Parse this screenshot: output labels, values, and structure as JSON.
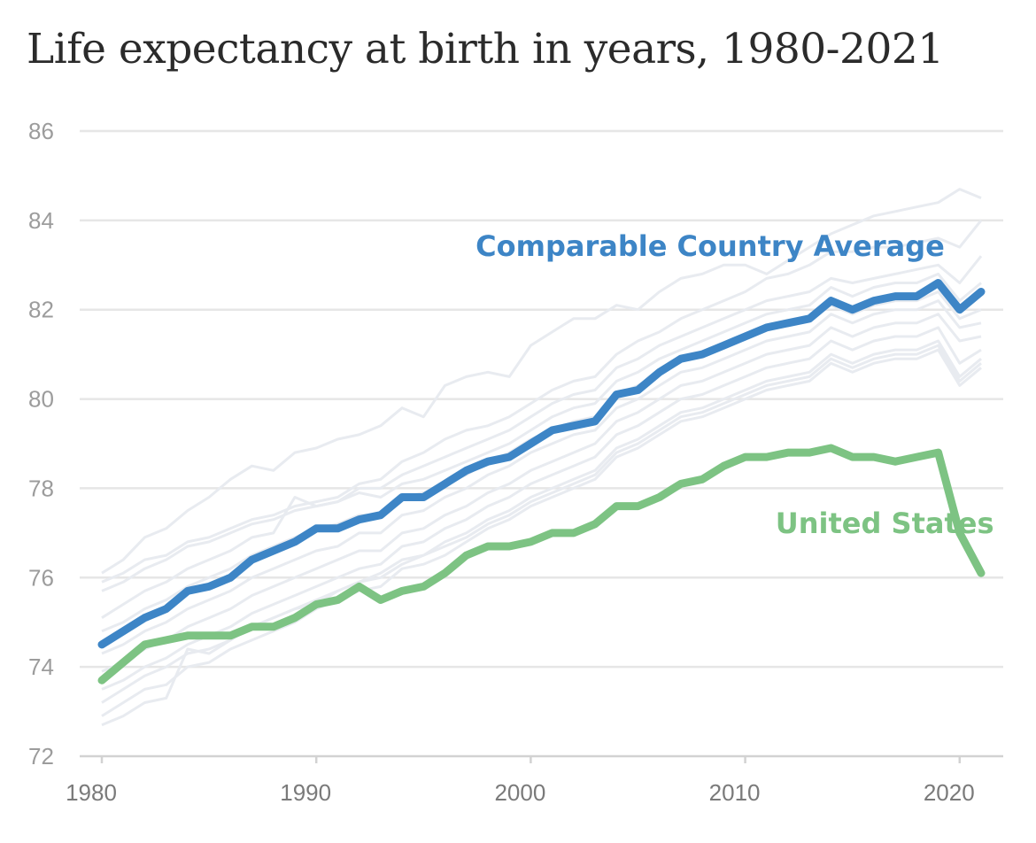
{
  "chart_data": {
    "type": "line",
    "title": "Life expectancy at birth in years, 1980-2021",
    "xlabel": "",
    "ylabel": "",
    "xlim": [
      1980,
      2021
    ],
    "ylim": [
      72,
      86
    ],
    "grid": true,
    "x_ticks": [
      {
        "value": 1980,
        "label": "1980"
      },
      {
        "value": 1990,
        "label": "1990"
      },
      {
        "value": 2000,
        "label": "2000"
      },
      {
        "value": 2010,
        "label": "2010"
      },
      {
        "value": 2020,
        "label": "2020"
      }
    ],
    "y_ticks": [
      {
        "value": 72,
        "label": "72"
      },
      {
        "value": 74,
        "label": "74"
      },
      {
        "value": 76,
        "label": "76"
      },
      {
        "value": 78,
        "label": "78"
      },
      {
        "value": 80,
        "label": "80"
      },
      {
        "value": 82,
        "label": "82"
      },
      {
        "value": 84,
        "label": "84"
      },
      {
        "value": 86,
        "label": "86"
      }
    ],
    "x": [
      1980,
      1981,
      1982,
      1983,
      1984,
      1985,
      1986,
      1987,
      1988,
      1989,
      1990,
      1991,
      1992,
      1993,
      1994,
      1995,
      1996,
      1997,
      1998,
      1999,
      2000,
      2001,
      2002,
      2003,
      2004,
      2005,
      2006,
      2007,
      2008,
      2009,
      2010,
      2011,
      2012,
      2013,
      2014,
      2015,
      2016,
      2017,
      2018,
      2019,
      2020,
      2021
    ],
    "series": [
      {
        "name": "Comparable Country Average",
        "label": "Comparable Country Average",
        "label_anchor": {
          "x": 2019.3,
          "y": 83.2
        },
        "color": "#3d85c6",
        "values": [
          74.5,
          74.8,
          75.1,
          75.3,
          75.7,
          75.8,
          76.0,
          76.4,
          76.6,
          76.8,
          77.1,
          77.1,
          77.3,
          77.4,
          77.8,
          77.8,
          78.1,
          78.4,
          78.6,
          78.7,
          79.0,
          79.3,
          79.4,
          79.5,
          80.1,
          80.2,
          80.6,
          80.9,
          81.0,
          81.2,
          81.4,
          81.6,
          81.7,
          81.8,
          82.2,
          82.0,
          82.2,
          82.3,
          82.3,
          82.6,
          82.0,
          82.4
        ]
      },
      {
        "name": "United States",
        "label": "United States",
        "label_anchor": {
          "x": 2021.6,
          "y": 77.0
        },
        "color": "#7dc383",
        "values": [
          73.7,
          74.1,
          74.5,
          74.6,
          74.7,
          74.7,
          74.7,
          74.9,
          74.9,
          75.1,
          75.4,
          75.5,
          75.8,
          75.5,
          75.7,
          75.8,
          76.1,
          76.5,
          76.7,
          76.7,
          76.8,
          77.0,
          77.0,
          77.2,
          77.6,
          77.6,
          77.8,
          78.1,
          78.2,
          78.5,
          78.7,
          78.7,
          78.8,
          78.8,
          78.9,
          78.7,
          78.7,
          78.6,
          78.7,
          78.8,
          77.0,
          76.1
        ]
      }
    ],
    "background_series": {
      "color": "#e8ebf0",
      "lines": [
        [
          76.1,
          76.4,
          76.9,
          77.1,
          77.5,
          77.8,
          78.2,
          78.5,
          78.4,
          78.8,
          78.9,
          79.1,
          79.2,
          79.4,
          79.8,
          79.6,
          80.3,
          80.5,
          80.6,
          80.5,
          81.2,
          81.5,
          81.8,
          81.8,
          82.1,
          82.0,
          82.4,
          82.7,
          82.8,
          83.0,
          83.0,
          82.8,
          83.1,
          83.4,
          83.7,
          83.9,
          84.1,
          84.2,
          84.3,
          84.4,
          84.7,
          84.5
        ],
        [
          75.9,
          76.1,
          76.4,
          76.5,
          76.8,
          76.9,
          77.1,
          77.3,
          77.4,
          77.6,
          77.7,
          77.8,
          78.1,
          78.2,
          78.6,
          78.8,
          79.1,
          79.3,
          79.4,
          79.6,
          79.9,
          80.2,
          80.4,
          80.5,
          81.0,
          81.3,
          81.5,
          81.8,
          82.0,
          82.2,
          82.4,
          82.7,
          82.8,
          83.0,
          83.3,
          83.3,
          83.4,
          83.4,
          83.5,
          83.6,
          83.4,
          84.0
        ],
        [
          75.7,
          75.9,
          76.2,
          76.4,
          76.7,
          76.8,
          77.0,
          77.2,
          77.3,
          77.5,
          77.6,
          77.7,
          78.0,
          78.0,
          78.3,
          78.5,
          78.7,
          78.9,
          79.1,
          79.3,
          79.6,
          79.9,
          80.1,
          80.2,
          80.7,
          80.9,
          81.2,
          81.4,
          81.6,
          81.8,
          82.0,
          82.2,
          82.3,
          82.4,
          82.7,
          82.6,
          82.7,
          82.8,
          82.9,
          83.0,
          82.6,
          83.2
        ],
        [
          75.1,
          75.4,
          75.7,
          75.9,
          76.2,
          76.4,
          76.6,
          76.9,
          77.0,
          77.8,
          77.6,
          77.7,
          77.9,
          77.8,
          78.1,
          78.2,
          78.4,
          78.6,
          78.8,
          79.0,
          79.3,
          79.6,
          79.8,
          79.9,
          80.4,
          80.6,
          80.9,
          81.1,
          81.3,
          81.5,
          81.7,
          81.9,
          82.0,
          82.1,
          82.5,
          82.3,
          82.5,
          82.6,
          82.6,
          82.8,
          82.2,
          82.6
        ],
        [
          74.8,
          75.0,
          75.3,
          75.5,
          75.8,
          76.0,
          76.2,
          76.5,
          76.7,
          76.9,
          77.1,
          77.2,
          77.4,
          77.4,
          77.8,
          77.9,
          78.1,
          78.3,
          78.6,
          78.8,
          79.1,
          79.3,
          79.5,
          79.6,
          80.1,
          80.3,
          80.6,
          80.9,
          81.0,
          81.2,
          81.4,
          81.6,
          81.7,
          81.8,
          82.1,
          81.9,
          82.1,
          82.2,
          82.2,
          82.4,
          81.8,
          82.0
        ],
        [
          74.3,
          74.5,
          74.8,
          75.0,
          75.3,
          75.5,
          75.7,
          76.0,
          76.2,
          76.4,
          76.6,
          76.7,
          77.0,
          77.0,
          77.4,
          77.5,
          77.8,
          78.0,
          78.3,
          78.5,
          78.8,
          79.0,
          79.2,
          79.3,
          79.8,
          80.0,
          80.3,
          80.6,
          80.7,
          80.9,
          81.1,
          81.3,
          81.4,
          81.5,
          81.9,
          81.7,
          81.9,
          82.0,
          82.0,
          82.2,
          81.6,
          81.7
        ],
        [
          73.9,
          74.1,
          74.4,
          74.6,
          74.9,
          75.1,
          75.3,
          75.6,
          75.8,
          76.0,
          76.2,
          76.4,
          76.6,
          76.6,
          77.0,
          77.1,
          77.4,
          77.6,
          77.9,
          78.1,
          78.4,
          78.6,
          78.8,
          79.0,
          79.5,
          79.7,
          80.0,
          80.3,
          80.4,
          80.6,
          80.8,
          81.0,
          81.1,
          81.2,
          81.6,
          81.4,
          81.6,
          81.7,
          81.7,
          81.9,
          81.3,
          81.4
        ],
        [
          73.5,
          73.7,
          74.0,
          74.2,
          74.5,
          74.7,
          74.9,
          75.2,
          75.4,
          75.6,
          75.8,
          76.0,
          76.2,
          76.3,
          76.7,
          76.8,
          77.1,
          77.3,
          77.6,
          77.8,
          78.1,
          78.3,
          78.5,
          78.7,
          79.2,
          79.4,
          79.7,
          80.0,
          80.1,
          80.3,
          80.5,
          80.7,
          80.8,
          80.9,
          81.3,
          81.1,
          81.3,
          81.4,
          81.4,
          81.6,
          80.8,
          81.1
        ],
        [
          73.2,
          73.5,
          73.8,
          74.0,
          74.3,
          74.4,
          74.6,
          74.9,
          75.1,
          75.3,
          75.5,
          75.7,
          75.9,
          76.1,
          76.4,
          76.5,
          76.8,
          77.0,
          77.3,
          77.5,
          77.8,
          78.0,
          78.2,
          78.4,
          78.9,
          79.1,
          79.4,
          79.7,
          79.8,
          80.0,
          80.2,
          80.4,
          80.5,
          80.6,
          81.0,
          80.8,
          81.0,
          81.1,
          81.1,
          81.3,
          80.5,
          80.9
        ],
        [
          72.9,
          73.2,
          73.5,
          73.6,
          74.0,
          74.1,
          74.4,
          74.6,
          74.8,
          75.0,
          75.3,
          75.5,
          75.7,
          75.8,
          76.2,
          76.3,
          76.5,
          76.8,
          77.1,
          77.3,
          77.6,
          77.8,
          78.0,
          78.2,
          78.7,
          78.9,
          79.2,
          79.5,
          79.6,
          79.8,
          80.0,
          80.2,
          80.3,
          80.4,
          80.8,
          80.6,
          80.8,
          80.9,
          80.9,
          81.1,
          80.3,
          80.7
        ],
        [
          72.7,
          72.9,
          73.2,
          73.3,
          74.4,
          74.3,
          74.6,
          74.9,
          75.1,
          75.3,
          75.4,
          75.7,
          75.9,
          76.0,
          76.3,
          76.5,
          76.7,
          76.9,
          77.2,
          77.4,
          77.7,
          77.9,
          78.1,
          78.3,
          78.8,
          79.0,
          79.3,
          79.6,
          79.7,
          79.9,
          80.1,
          80.3,
          80.4,
          80.5,
          80.9,
          80.7,
          80.9,
          81.0,
          81.0,
          81.2,
          80.4,
          80.8
        ]
      ]
    }
  }
}
